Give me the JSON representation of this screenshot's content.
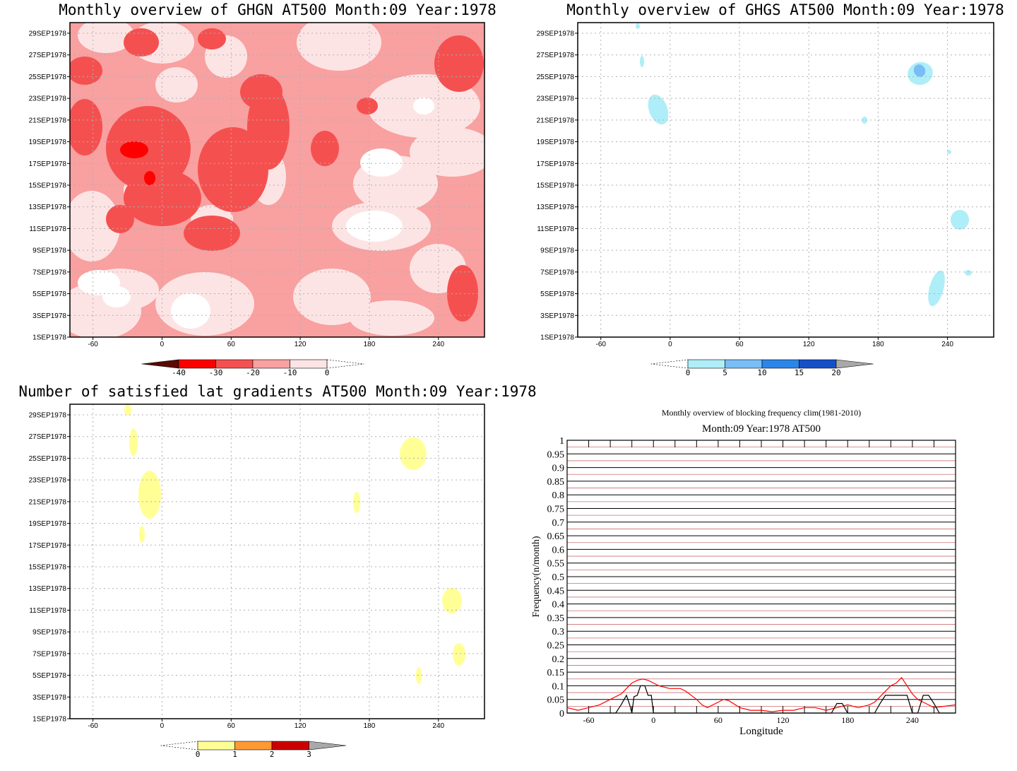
{
  "chart_data": [
    {
      "type": "heatmap",
      "title": "Monthly overview of GHGN AT500 Month:09 Year:1978",
      "x_ticks": [
        -60,
        0,
        60,
        120,
        180,
        240
      ],
      "x_range": [
        -80,
        280
      ],
      "y_ticks": [
        "1SEP1978",
        "3SEP1978",
        "5SEP1978",
        "7SEP1978",
        "9SEP1978",
        "11SEP1978",
        "13SEP1978",
        "15SEP1978",
        "17SEP1978",
        "19SEP1978",
        "21SEP1978",
        "23SEP1978",
        "25SEP1978",
        "27SEP1978",
        "29SEP1978"
      ],
      "colorbar": {
        "labels": [
          "-40",
          "-30",
          "-20",
          "-10",
          "0"
        ],
        "colors": [
          "#5a0a00",
          "#ff0000",
          "#f55050",
          "#f9a0a0",
          "#fde4e4"
        ]
      },
      "grid": true
    },
    {
      "type": "heatmap",
      "title": "Monthly overview of GHGS AT500 Month:09 Year:1978",
      "x_ticks": [
        -60,
        0,
        60,
        120,
        180,
        240
      ],
      "x_range": [
        -80,
        280
      ],
      "y_ticks": [
        "1SEP1978",
        "3SEP1978",
        "5SEP1978",
        "7SEP1978",
        "9SEP1978",
        "11SEP1978",
        "13SEP1978",
        "15SEP1978",
        "17SEP1978",
        "19SEP1978",
        "21SEP1978",
        "23SEP1978",
        "25SEP1978",
        "27SEP1978",
        "29SEP1978"
      ],
      "colorbar": {
        "labels": [
          "0",
          "5",
          "10",
          "15",
          "20"
        ],
        "colors": [
          "#aeeef8",
          "#78bdf5",
          "#2b86ea",
          "#1450c8",
          "#a9a9a9"
        ]
      },
      "grid": true
    },
    {
      "type": "heatmap",
      "title": "Number of satisfied lat gradients AT500 Month:09 Year:1978",
      "x_ticks": [
        -60,
        0,
        60,
        120,
        180,
        240
      ],
      "x_range": [
        -80,
        280
      ],
      "y_ticks": [
        "1SEP1978",
        "3SEP1978",
        "5SEP1978",
        "7SEP1978",
        "9SEP1978",
        "11SEP1978",
        "13SEP1978",
        "15SEP1978",
        "17SEP1978",
        "19SEP1978",
        "21SEP1978",
        "23SEP1978",
        "25SEP1978",
        "27SEP1978",
        "29SEP1978"
      ],
      "colorbar": {
        "labels": [
          "0",
          "1",
          "2",
          "3"
        ],
        "colors": [
          "#ffff96",
          "#ff9933",
          "#cc0000",
          "#a9a9a9"
        ]
      },
      "grid": true
    },
    {
      "type": "line",
      "title": "Monthly overview of blocking frequency clim(1981-2010)",
      "subtitle": "Month:09 Year:1978  AT500",
      "xlabel": "Longitude",
      "ylabel": "Frequency(n/month)",
      "x_ticks": [
        -60,
        0,
        60,
        120,
        180,
        240
      ],
      "y_ticks": [
        "0",
        "0.05",
        "0.1",
        "0.15",
        "0.2",
        "0.25",
        "0.3",
        "0.35",
        "0.4",
        "0.45",
        "0.5",
        "0.55",
        "0.6",
        "0.65",
        "0.7",
        "0.75",
        "0.8",
        "0.85",
        "0.9",
        "0.95",
        "1"
      ],
      "xlim": [
        -80,
        280
      ],
      "ylim": [
        0,
        1
      ],
      "series": [
        {
          "color": "#ff0000",
          "x": [
            -80,
            -70,
            -60,
            -50,
            -40,
            -30,
            -25,
            -20,
            -15,
            -10,
            -5,
            0,
            5,
            10,
            15,
            20,
            25,
            30,
            40,
            45,
            50,
            60,
            65,
            70,
            80,
            90,
            100,
            110,
            120,
            130,
            140,
            150,
            160,
            170,
            180,
            190,
            200,
            205,
            210,
            215,
            220,
            225,
            230,
            235,
            240,
            245,
            250,
            255,
            260,
            270,
            280
          ],
          "y": [
            0.02,
            0.01,
            0.02,
            0.03,
            0.05,
            0.07,
            0.09,
            0.11,
            0.12,
            0.125,
            0.12,
            0.11,
            0.1,
            0.095,
            0.09,
            0.09,
            0.09,
            0.08,
            0.05,
            0.03,
            0.02,
            0.04,
            0.05,
            0.045,
            0.02,
            0.01,
            0.01,
            0.005,
            0.01,
            0.01,
            0.02,
            0.02,
            0.01,
            0.02,
            0.03,
            0.02,
            0.03,
            0.04,
            0.06,
            0.08,
            0.1,
            0.11,
            0.13,
            0.1,
            0.07,
            0.05,
            0.04,
            0.03,
            0.02,
            0.025,
            0.03
          ]
        },
        {
          "color": "#000000",
          "x": [
            -80,
            -35,
            -30,
            -25,
            -22,
            -20,
            -18,
            -15,
            -12,
            -8,
            -5,
            -2,
            0,
            165,
            170,
            175,
            180,
            185,
            205,
            210,
            215,
            220,
            225,
            230,
            235,
            240,
            245,
            250,
            255,
            260,
            265,
            280
          ],
          "y": [
            0,
            0,
            0.03,
            0.065,
            0.03,
            0,
            0.06,
            0.065,
            0.1,
            0.1,
            0.065,
            0.065,
            0,
            0,
            0.035,
            0.035,
            0,
            0,
            0,
            0.035,
            0.065,
            0.065,
            0.065,
            0.065,
            0.065,
            0,
            0,
            0.065,
            0.065,
            0.035,
            0,
            0
          ]
        }
      ],
      "grid": true
    }
  ]
}
